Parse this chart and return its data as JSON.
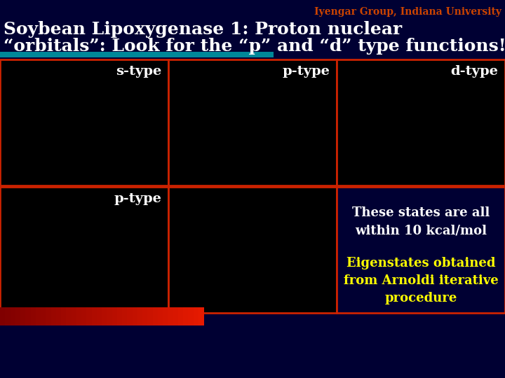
{
  "bg_color": "#000033",
  "title_line1": "Soybean Lipoxygenase 1: Proton nuclear",
  "title_line2": "“orbitals”: Look for the “p” and “d” type functions!!",
  "title_color": "#ffffff",
  "title_fontsize": 18,
  "subtitle": "Iyengar Group, Indiana University",
  "subtitle_color": "#cc4400",
  "subtitle_fontsize": 10,
  "underline_color": "#008899",
  "grid_border_color": "#cc2200",
  "cell_bg_color": "#000000",
  "right_panel_bg": "#000033",
  "labels": {
    "top_left": "s-type",
    "top_mid": "p-type",
    "top_right": "d-type",
    "bot_left": "p-type"
  },
  "label_color": "#ffffff",
  "label_fontsize": 14,
  "text_white": "These states are all\nwithin 10 kcal/mol",
  "text_yellow": "Eigenstates obtained\nfrom Arnoldi iterative\nprocedure",
  "text_white_color": "#ffffff",
  "text_yellow_color": "#ffff00",
  "text_fontsize": 13,
  "red_bar_color": "#cc2200"
}
